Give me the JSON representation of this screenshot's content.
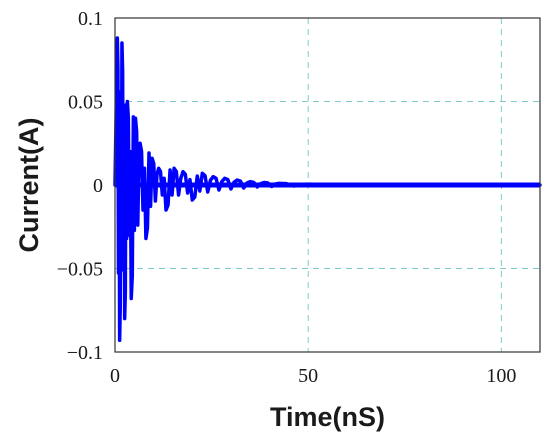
{
  "chart_data": {
    "type": "line",
    "title": "",
    "xlabel": "Time(nS)",
    "ylabel": "Current(A)",
    "xlim": [
      0,
      110
    ],
    "ylim": [
      -0.1,
      0.1
    ],
    "x_ticks": [
      0,
      50,
      100
    ],
    "x_tick_labels": [
      "0",
      "50",
      "100"
    ],
    "y_ticks": [
      -0.1,
      -0.05,
      0,
      0.05,
      0.1
    ],
    "y_tick_labels": [
      "−0.1",
      "−0.05",
      "0",
      "0.05",
      "0.1"
    ],
    "grid": true,
    "series": [
      {
        "color": "#0000ff",
        "description_points": "envelope peaks of damped oscillation (time nS, current A)",
        "x": [
          0.6,
          1.2,
          1.8,
          2.5,
          3.2,
          4.2,
          5.3,
          6.5,
          8.0,
          9.6,
          11.3,
          13.2,
          15.3,
          17.6,
          20.0,
          22.6,
          25.4,
          28.4,
          31.6,
          35.0,
          38.6,
          42.5,
          50.0,
          60.0,
          80.0,
          110.0
        ],
        "y": [
          0.088,
          -0.093,
          0.085,
          -0.08,
          0.05,
          -0.068,
          0.04,
          0.025,
          -0.032,
          0.016,
          0.01,
          -0.015,
          0.01,
          0.008,
          -0.009,
          0.007,
          0.005,
          0.004,
          0.003,
          0.002,
          0.0015,
          0.001,
          0.0005,
          0.0003,
          0.0001,
          0.0
        ]
      }
    ]
  }
}
